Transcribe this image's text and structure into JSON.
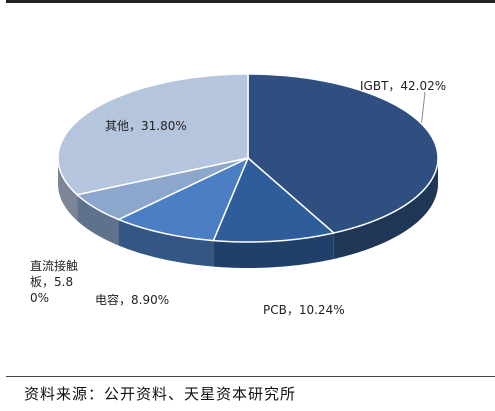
{
  "chart_data": {
    "type": "pie",
    "values": [
      42.02,
      10.24,
      8.9,
      5.8,
      31.8
    ],
    "value_labels": [
      "IGBT，42.02%",
      "PCB，10.24%",
      "电容，8.90%",
      "直流接触板，5.80%",
      "其他，31.80%"
    ],
    "colors": [
      "#2e4f7f",
      "#2f5c9b",
      "#4b7ec2",
      "#8da6cc",
      "#b6c5de"
    ]
  },
  "source": "资料来源：公开资料、天星资本研究所"
}
